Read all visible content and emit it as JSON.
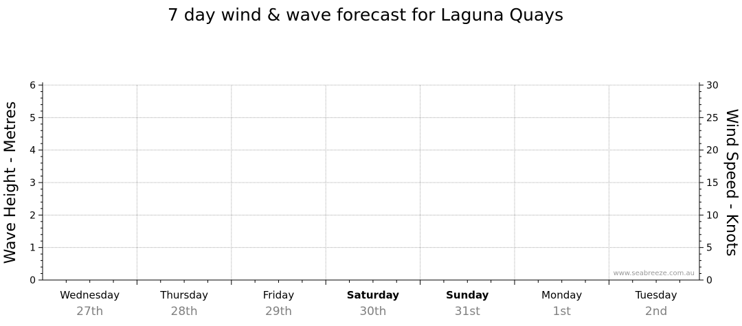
{
  "chart_data": {
    "type": "line",
    "title": "7 day wind & wave forecast for Laguna Quays",
    "left_axis": {
      "label": "Wave Height - Metres",
      "range": [
        0,
        6
      ],
      "ticks": [
        "0",
        "1",
        "2",
        "3",
        "4",
        "5",
        "6"
      ]
    },
    "right_axis": {
      "label": "Wind Speed - Knots",
      "range": [
        0,
        30
      ],
      "ticks": [
        "0",
        "5",
        "10",
        "15",
        "20",
        "25",
        "30"
      ]
    },
    "days": [
      {
        "name": "Wednesday",
        "date": "27th",
        "bold": false
      },
      {
        "name": "Thursday",
        "date": "28th",
        "bold": false
      },
      {
        "name": "Friday",
        "date": "29th",
        "bold": false
      },
      {
        "name": "Saturday",
        "date": "30th",
        "bold": true
      },
      {
        "name": "Sunday",
        "date": "31st",
        "bold": true
      },
      {
        "name": "Monday",
        "date": "1st",
        "bold": false
      },
      {
        "name": "Tuesday",
        "date": "2nd",
        "bold": false
      }
    ],
    "series": [],
    "grid": true,
    "credit": "www.seabreeze.com.au"
  }
}
